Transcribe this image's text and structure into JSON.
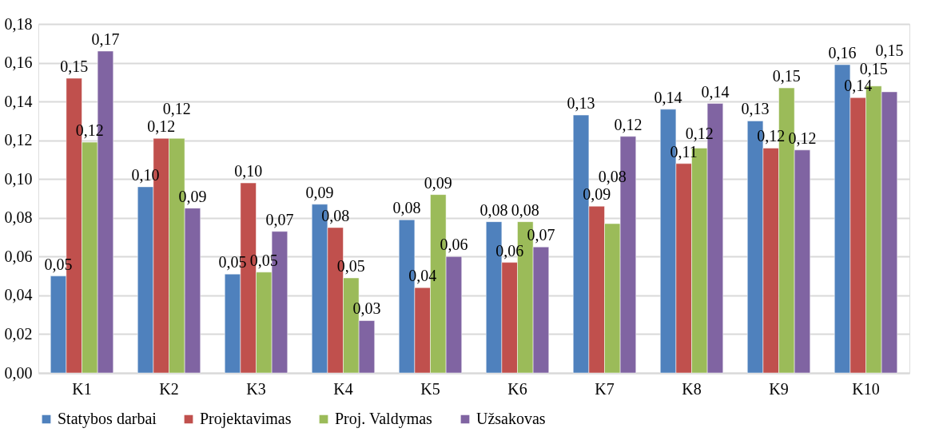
{
  "chart_data": {
    "type": "bar",
    "categories": [
      "K1",
      "K2",
      "K3",
      "K4",
      "K5",
      "K6",
      "K7",
      "K8",
      "K9",
      "K10"
    ],
    "series": [
      {
        "name": "Statybos darbai",
        "color": "#4f81bd",
        "values": [
          0.05,
          0.096,
          0.051,
          0.087,
          0.079,
          0.078,
          0.133,
          0.136,
          0.13,
          0.159
        ],
        "value_labels": [
          "0,05",
          "0,10",
          "0,05",
          "0,09",
          "0,08",
          "0,08",
          "0,13",
          "0,14",
          "0,13",
          "0,16"
        ]
      },
      {
        "name": "Projektavimas",
        "color": "#c0504d",
        "values": [
          0.152,
          0.121,
          0.098,
          0.075,
          0.044,
          0.057,
          0.086,
          0.108,
          0.116,
          0.142
        ],
        "value_labels": [
          "0,15",
          "0,12",
          "0,10",
          "0,08",
          "0,04",
          "0,06",
          "0,09",
          "0,11",
          "0,12",
          "0,14"
        ]
      },
      {
        "name": "Proj. Valdymas",
        "color": "#9bbb59",
        "values": [
          0.119,
          0.121,
          0.052,
          0.049,
          0.092,
          0.078,
          0.077,
          0.116,
          0.147,
          0.148
        ],
        "value_labels": [
          "0,12",
          "0,12",
          "0,05",
          "0,05",
          "0,09",
          "0,08",
          "0,08",
          "0,12",
          "0,15",
          "0,15"
        ]
      },
      {
        "name": "Užsakovas",
        "color": "#8064a2",
        "values": [
          0.166,
          0.085,
          0.073,
          0.027,
          0.06,
          0.065,
          0.122,
          0.139,
          0.115,
          0.145
        ],
        "value_labels": [
          "0,17",
          "0,09",
          "0,07",
          "0,03",
          "0,06",
          "0,07",
          "0,12",
          "0,14",
          "0,12",
          "0,15"
        ]
      }
    ],
    "ylim": [
      0,
      0.18
    ],
    "yticks": [
      {
        "value": 0,
        "label": "0,00"
      },
      {
        "value": 0.02,
        "label": "0,02"
      },
      {
        "value": 0.04,
        "label": "0,04"
      },
      {
        "value": 0.06,
        "label": "0,06"
      },
      {
        "value": 0.08,
        "label": "0,08"
      },
      {
        "value": 0.1,
        "label": "0,10"
      },
      {
        "value": 0.12,
        "label": "0,12"
      },
      {
        "value": 0.14,
        "label": "0,14"
      },
      {
        "value": 0.16,
        "label": "0,16"
      },
      {
        "value": 0.18,
        "label": "0,18"
      }
    ],
    "grid": "y",
    "legend": "bottom"
  }
}
